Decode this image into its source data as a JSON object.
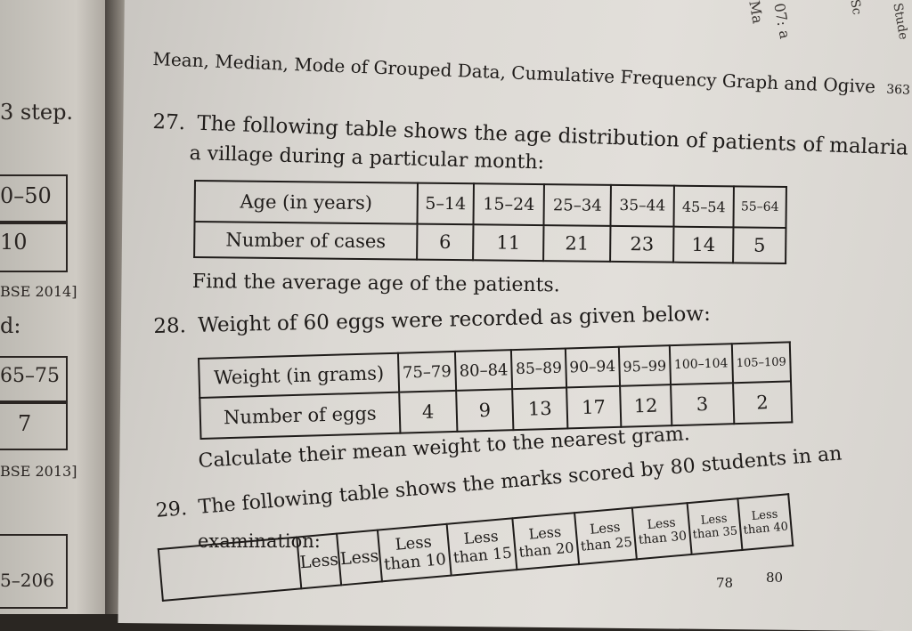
{
  "header": "Mean, Median, Mode of Grouped Data, Cumulative Frequency Graph and Ogive",
  "page_number": "363",
  "left_page": {
    "step": "3 step.",
    "box1": "0–50",
    "box2": "10",
    "ref1": "BSE 2014]",
    "d": "d:",
    "box3": "65–75",
    "box4": "7",
    "ref2": "BSE 2013]",
    "bottom": "5–206"
  },
  "side_text": [
    "Ma",
    "07: a",
    "Sc",
    "Stude"
  ],
  "q27": {
    "num": "27.",
    "text1": "The following table shows the age distribution of patients of malaria in",
    "text2": "a village during a particular month:",
    "table": {
      "row1_label": "Age (in years)",
      "row1": [
        "5–14",
        "15–24",
        "25–34",
        "35–44",
        "45–54",
        "55–64"
      ],
      "row2_label": "Number of cases",
      "row2": [
        "6",
        "11",
        "21",
        "23",
        "14",
        "5"
      ]
    },
    "find": "Find the average age of the patients."
  },
  "q28": {
    "num": "28.",
    "text": "Weight of 60 eggs were recorded as given below:",
    "table": {
      "row1_label": "Weight (in grams)",
      "row1": [
        "75–79",
        "80–84",
        "85–89",
        "90–94",
        "95–99",
        "100–104",
        "105–109"
      ],
      "row2_label": "Number of eggs",
      "row2": [
        "4",
        "9",
        "13",
        "17",
        "12",
        "3",
        "2"
      ]
    },
    "calc": "Calculate their mean weight to the nearest gram."
  },
  "q29": {
    "num": "29.",
    "text1": "The following table shows the marks scored by 80 students in an",
    "text2": "examination:",
    "table": {
      "headers": [
        "Less",
        "Less",
        "Less than 10",
        "Less than 15",
        "Less than 20",
        "Less than 25",
        "Less than 30",
        "Less than 35",
        "Less than 40"
      ],
      "visible_values": [
        "78",
        "80"
      ]
    }
  }
}
